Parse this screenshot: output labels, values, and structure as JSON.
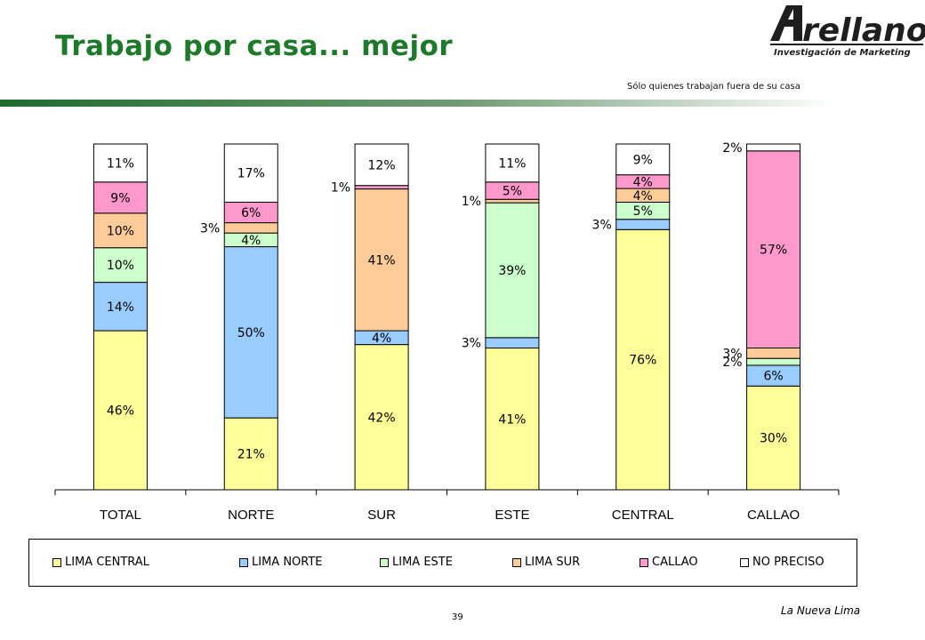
{
  "header": {
    "title": "Trabajo por casa... mejor",
    "logo_text": "rellano",
    "logo_tagline": "Investigación de Marketing",
    "subtitle": "Sólo quienes trabajan fuera de su casa"
  },
  "footer": {
    "page_number": "39",
    "section": "La Nueva Lima"
  },
  "colors": {
    "title": "#1e7a2a",
    "rule_dark": "#1e6b2e",
    "rule_light": "#ffffff"
  },
  "chart_data": {
    "type": "bar",
    "stacked": true,
    "percent_stacked": true,
    "categories": [
      "TOTAL",
      "NORTE",
      "SUR",
      "ESTE",
      "CENTRAL",
      "CALLAO"
    ],
    "series": [
      {
        "name": "LIMA CENTRAL",
        "color": "#ffff99",
        "values": [
          46,
          21,
          42,
          41,
          76,
          30
        ]
      },
      {
        "name": "LIMA NORTE",
        "color": "#99ccff",
        "values": [
          14,
          50,
          4,
          3,
          3,
          6
        ]
      },
      {
        "name": "LIMA ESTE",
        "color": "#ccffcc",
        "values": [
          10,
          4,
          0,
          39,
          5,
          2
        ]
      },
      {
        "name": "LIMA SUR",
        "color": "#ffcc99",
        "values": [
          10,
          3,
          41,
          1,
          4,
          3
        ]
      },
      {
        "name": "CALLAO",
        "color": "#ff99cc",
        "values": [
          9,
          6,
          1,
          5,
          4,
          57
        ]
      },
      {
        "name": "NO PRECISO",
        "color": "#ffffff",
        "values": [
          11,
          17,
          12,
          11,
          9,
          2
        ]
      }
    ],
    "ylim": [
      0,
      100
    ],
    "grid": false,
    "legend_position": "bottom"
  }
}
